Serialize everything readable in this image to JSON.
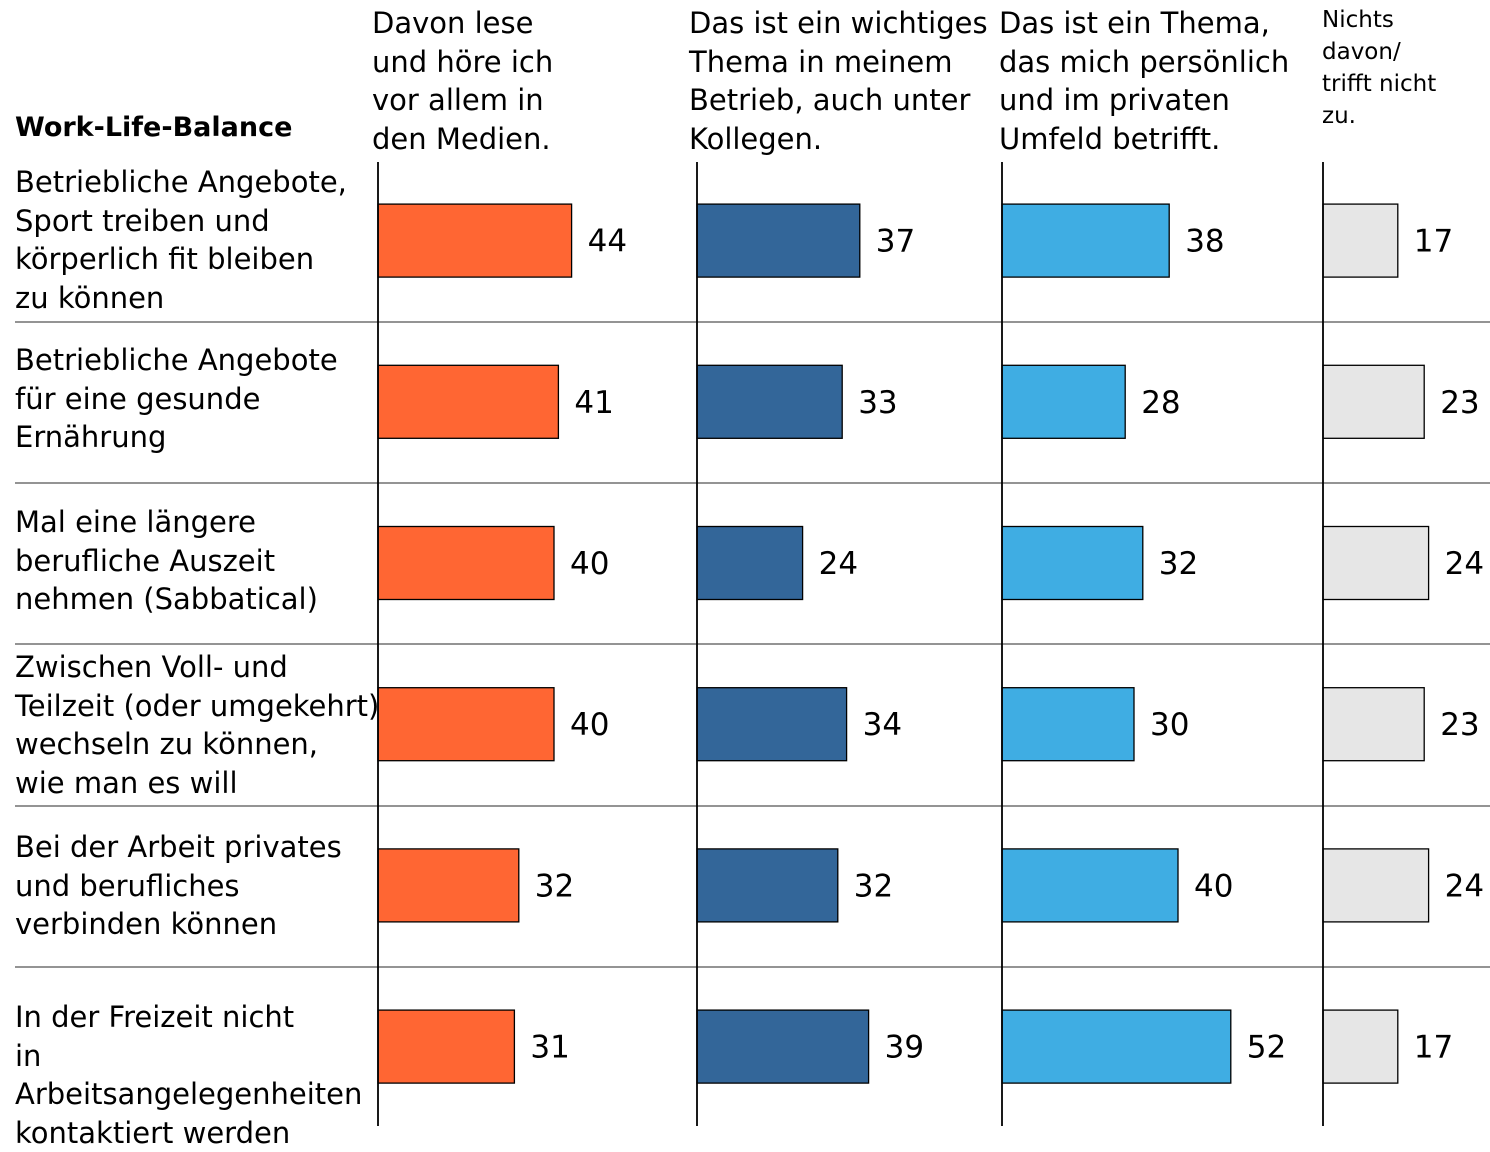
{
  "chart_data": {
    "type": "bar",
    "title": "Work-Life-Balance",
    "columns": [
      {
        "name": "Davon lese\nund höre ich\nvor allem in\nden Medien.",
        "color": "#ff6633"
      },
      {
        "name": "Das ist ein wichtiges\nThema in meinem\nBetrieb, auch unter\nKollegen.",
        "color": "#336699"
      },
      {
        "name": "Das ist ein Thema,\ndas mich persönlich\nund im privaten\nUmfeld betrifft.",
        "color": "#3fade3"
      },
      {
        "name": "Nichts\ndavon/\ntrifft nicht\nzu.",
        "color": "#e6e6e6"
      }
    ],
    "categories": [
      "Betriebliche Angebote,\nSport treiben und\nkörperlich fit bleiben\nzu können",
      "Betriebliche Angebote\nfür eine gesunde\nErnährung",
      "Mal eine längere\nberufliche Auszeit\nnehmen (Sabbatical)",
      "Zwischen Voll- und\nTeilzeit (oder umgekehrt)\nwechseln zu können,\nwie man es will",
      "Bei der Arbeit privates\nund berufliches\nverbinden können",
      "In der Freizeit nicht\nin Arbeitsangelegenheiten\nkontaktiert werden"
    ],
    "values": [
      [
        44,
        37,
        38,
        17
      ],
      [
        41,
        33,
        28,
        23
      ],
      [
        40,
        24,
        32,
        24
      ],
      [
        40,
        34,
        30,
        23
      ],
      [
        32,
        32,
        40,
        24
      ],
      [
        31,
        39,
        52,
        17
      ]
    ],
    "grid": false,
    "legend": "top"
  }
}
